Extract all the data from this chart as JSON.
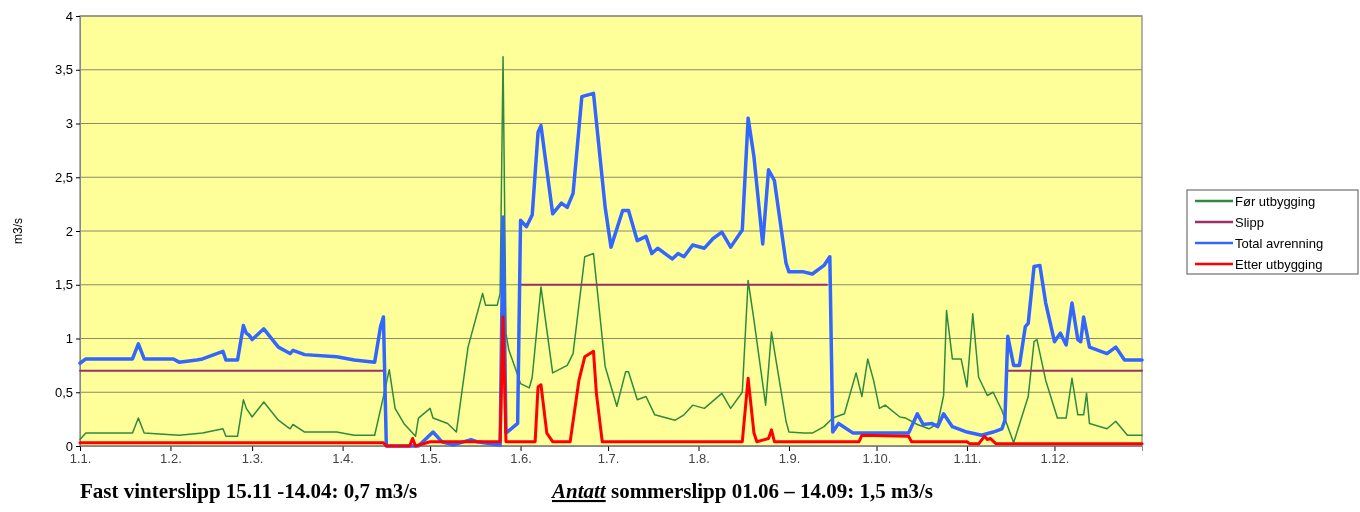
{
  "chart_data": {
    "type": "line",
    "ylabel": "m3/s",
    "xlim": [
      "--01-01",
      "--12-31"
    ],
    "ylim": [
      0,
      4
    ],
    "xticks": [
      {
        "value": "--01-01",
        "label": "1.1."
      },
      {
        "value": "--02-01",
        "label": "1.2."
      },
      {
        "value": "--03-01",
        "label": "1.3."
      },
      {
        "value": "--04-01",
        "label": "1.4."
      },
      {
        "value": "--05-01",
        "label": "1.5."
      },
      {
        "value": "--06-01",
        "label": "1.6."
      },
      {
        "value": "--07-01",
        "label": "1.7."
      },
      {
        "value": "--08-01",
        "label": "1.8."
      },
      {
        "value": "--09-01",
        "label": "1.9."
      },
      {
        "value": "--10-01",
        "label": "1.10."
      },
      {
        "value": "--11-01",
        "label": "1.11."
      },
      {
        "value": "--12-01",
        "label": "1.12."
      }
    ],
    "yticks": [
      0,
      {
        "value": 0.5,
        "label": "0,5"
      },
      1,
      {
        "value": 1.5,
        "label": "1,5"
      },
      2,
      {
        "value": 2.5,
        "label": "2,5"
      },
      3,
      {
        "value": 3.5,
        "label": "3,5"
      },
      4
    ],
    "grid": "y",
    "legend": "right",
    "marker": "none",
    "line_style": "solid",
    "annotations": [
      "Fast vinterslipp 15.11 -14.04: 0,7 m3/s",
      "Antatt sommerslipp 01.06 – 14.09: 1,5 m3/s"
    ],
    "series": [
      {
        "name": "Før utbygging",
        "color": "#2e8b3e",
        "x": [
          "--01-01",
          "--01-03",
          "--01-19",
          "--01-21",
          "--01-23",
          "--02-04",
          "--02-12",
          "--02-19",
          "--02-20",
          "--02-24",
          "--02-26",
          "--02-27",
          "--03-01",
          "--03-05",
          "--03-10",
          "--03-14",
          "--03-15",
          "--03-19",
          "--03-30",
          "--04-05",
          "--04-12",
          "--04-15",
          "--04-17",
          "--04-19",
          "--04-22",
          "--04-26",
          "--04-27",
          "--05-01",
          "--05-02",
          "--05-07",
          "--05-10",
          "--05-14",
          "--05-19",
          "--05-20",
          "--05-24",
          "--05-25",
          "--05-26",
          "--05-27",
          "--05-28",
          "--05-30",
          "--06-01",
          "--06-04",
          "--06-05",
          "--06-08",
          "--06-12",
          "--06-17",
          "--06-19",
          "--06-23",
          "--06-26",
          "--06-30",
          "--07-04",
          "--07-07",
          "--07-08",
          "--07-11",
          "--07-14",
          "--07-17",
          "--07-24",
          "--07-27",
          "--07-30",
          "--08-03",
          "--08-09",
          "--08-12",
          "--08-16",
          "--08-18",
          "--08-20",
          "--08-24",
          "--08-26",
          "--08-27",
          "--08-31",
          "--09-01",
          "--09-06",
          "--09-09",
          "--09-13",
          "--09-16",
          "--09-20",
          "--09-24",
          "--09-26",
          "--09-28",
          "--09-30",
          "--10-02",
          "--10-04",
          "--10-09",
          "--10-11",
          "--10-15",
          "--10-19",
          "--10-22",
          "--10-24",
          "--10-25",
          "--10-27",
          "--10-30",
          "--11-01",
          "--11-03",
          "--11-05",
          "--11-08",
          "--11-10",
          "--11-13",
          "--11-17",
          "--11-22",
          "--11-24",
          "--11-25",
          "--11-28",
          "--12-02",
          "--12-05",
          "--12-07",
          "--12-09",
          "--12-11",
          "--12-12",
          "--12-13",
          "--12-19",
          "--12-22",
          "--12-26",
          "--12-31"
        ],
        "values": [
          0.06,
          0.12,
          0.12,
          0.26,
          0.12,
          0.1,
          0.12,
          0.16,
          0.09,
          0.09,
          0.43,
          0.35,
          0.27,
          0.41,
          0.24,
          0.16,
          0.2,
          0.13,
          0.13,
          0.1,
          0.1,
          0.46,
          0.71,
          0.35,
          0.21,
          0.09,
          0.26,
          0.35,
          0.26,
          0.21,
          0.13,
          0.92,
          1.42,
          1.31,
          1.31,
          1.42,
          3.62,
          1.05,
          0.89,
          0.74,
          0.58,
          0.54,
          0.64,
          1.48,
          0.68,
          0.75,
          0.86,
          1.76,
          1.79,
          0.74,
          0.37,
          0.69,
          0.69,
          0.43,
          0.46,
          0.29,
          0.24,
          0.29,
          0.38,
          0.35,
          0.49,
          0.35,
          0.5,
          1.54,
          1.17,
          0.38,
          1.06,
          0.89,
          0.23,
          0.13,
          0.12,
          0.12,
          0.18,
          0.26,
          0.3,
          0.68,
          0.46,
          0.81,
          0.61,
          0.35,
          0.38,
          0.27,
          0.26,
          0.2,
          0.16,
          0.21,
          0.47,
          1.26,
          0.81,
          0.81,
          0.55,
          1.23,
          0.64,
          0.47,
          0.5,
          0.33,
          0.03,
          0.46,
          0.97,
          0.99,
          0.61,
          0.26,
          0.26,
          0.63,
          0.29,
          0.29,
          0.49,
          0.21,
          0.16,
          0.23,
          0.1,
          0.1
        ]
      },
      {
        "name": "Slipp",
        "color": "#993366",
        "x": [
          "--01-01",
          "--04-15",
          "--05-10",
          "--06-01",
          "--09-14",
          "--10-15",
          "--11-15",
          "--12-31"
        ],
        "values": [
          0.7,
          0.7,
          null,
          1.5,
          1.5,
          null,
          0.7,
          0.7
        ]
      },
      {
        "name": "Total avrenning",
        "color": "#3366ff",
        "x": [
          "--01-01",
          "--01-03",
          "--01-19",
          "--01-21",
          "--01-23",
          "--02-02",
          "--02-04",
          "--02-10",
          "--02-12",
          "--02-19",
          "--02-20",
          "--02-24",
          "--02-26",
          "--02-27",
          "--02-28",
          "--03-01",
          "--03-05",
          "--03-10",
          "--03-14",
          "--03-15",
          "--03-19",
          "--03-30",
          "--04-05",
          "--04-12",
          "--04-14",
          "--04-15",
          "--04-16",
          "--04-27",
          "--05-02",
          "--05-05",
          "--05-09",
          "--05-15",
          "--05-17",
          "--05-25",
          "--05-26",
          "--05-27",
          "--05-31",
          "--06-01",
          "--06-03",
          "--06-05",
          "--06-07",
          "--06-08",
          "--06-12",
          "--06-15",
          "--06-17",
          "--06-19",
          "--06-22",
          "--06-26",
          "--06-30",
          "--07-02",
          "--07-06",
          "--07-08",
          "--07-11",
          "--07-14",
          "--07-16",
          "--07-18",
          "--07-23",
          "--07-25",
          "--07-27",
          "--07-30",
          "--08-03",
          "--08-06",
          "--08-09",
          "--08-12",
          "--08-16",
          "--08-18",
          "--08-20",
          "--08-23",
          "--08-25",
          "--08-27",
          "--08-31",
          "--09-01",
          "--09-06",
          "--09-09",
          "--09-13",
          "--09-15",
          "--09-16",
          "--09-18",
          "--09-23",
          "--10-12",
          "--10-15",
          "--10-17",
          "--10-20",
          "--10-22",
          "--10-24",
          "--10-27",
          "--11-01",
          "--11-06",
          "--11-10",
          "--11-13",
          "--11-14",
          "--11-15",
          "--11-17",
          "--11-19",
          "--11-21",
          "--11-22",
          "--11-24",
          "--11-26",
          "--11-28",
          "--12-01",
          "--12-03",
          "--12-05",
          "--12-07",
          "--12-09",
          "--12-10",
          "--12-11",
          "--12-13",
          "--12-19",
          "--12-22",
          "--12-25",
          "--12-31"
        ],
        "values": [
          0.77,
          0.81,
          0.81,
          0.95,
          0.81,
          0.81,
          0.78,
          0.8,
          0.81,
          0.88,
          0.8,
          0.8,
          1.12,
          1.05,
          1.03,
          0.99,
          1.09,
          0.92,
          0.86,
          0.89,
          0.85,
          0.83,
          0.8,
          0.78,
          1.11,
          1.2,
          0,
          0,
          0.13,
          0.04,
          0.01,
          0.06,
          0.04,
          0.01,
          2.13,
          0.12,
          0.21,
          2.1,
          2.04,
          2.15,
          2.92,
          2.98,
          2.16,
          2.26,
          2.22,
          2.35,
          3.25,
          3.28,
          2.22,
          1.85,
          2.19,
          2.19,
          1.91,
          1.95,
          1.79,
          1.84,
          1.74,
          1.79,
          1.76,
          1.87,
          1.84,
          1.93,
          1.99,
          1.85,
          2.01,
          3.05,
          2.69,
          1.88,
          2.57,
          2.47,
          1.7,
          1.62,
          1.62,
          1.6,
          1.68,
          1.76,
          0.13,
          0.21,
          0.12,
          0.12,
          0.3,
          0.2,
          0.21,
          0.18,
          0.3,
          0.18,
          0.13,
          0.1,
          0.13,
          0.16,
          0.24,
          1.02,
          0.75,
          0.75,
          1.11,
          1.14,
          1.67,
          1.68,
          1.33,
          0.97,
          1.05,
          0.94,
          1.33,
          0.99,
          0.97,
          1.2,
          0.92,
          0.86,
          0.92,
          0.8,
          0.8
        ]
      },
      {
        "name": "Etter utbygging",
        "color": "#ff0000",
        "x": [
          "--01-01",
          "--04-15",
          "--04-16",
          "--04-24",
          "--04-25",
          "--04-26",
          "--05-01",
          "--05-25",
          "--05-26",
          "--05-27",
          "--06-06",
          "--06-07",
          "--06-08",
          "--06-10",
          "--06-12",
          "--06-18",
          "--06-21",
          "--06-23",
          "--06-26",
          "--06-27",
          "--06-29",
          "--08-16",
          "--08-18",
          "--08-20",
          "--08-21",
          "--08-25",
          "--08-26",
          "--08-27",
          "--09-25",
          "--09-26",
          "--10-12",
          "--10-13",
          "--11-01",
          "--11-02",
          "--11-05",
          "--11-07",
          "--11-08",
          "--11-09",
          "--11-11",
          "--12-31"
        ],
        "values": [
          0.03,
          0.03,
          0,
          0,
          0.07,
          0,
          0.04,
          0.04,
          1.2,
          0.04,
          0.04,
          0.55,
          0.57,
          0.12,
          0.04,
          0.04,
          0.61,
          0.83,
          0.88,
          0.49,
          0.04,
          0.04,
          0.63,
          0.12,
          0.04,
          0.07,
          0.15,
          0.04,
          0.04,
          0.1,
          0.09,
          0.04,
          0.04,
          0.02,
          0.02,
          0.09,
          0.06,
          0.07,
          0.02,
          0.02
        ]
      }
    ]
  }
}
